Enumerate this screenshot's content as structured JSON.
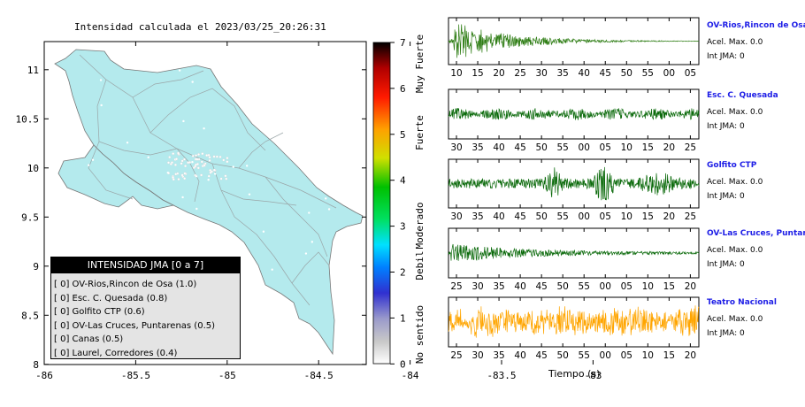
{
  "map": {
    "title": "Intensidad calculada el 2023/03/25_20:26:31",
    "lon_ticks": [
      "-86",
      "-85.5",
      "-85",
      "-84.5",
      "-84",
      "-83.5",
      "-83"
    ],
    "lat_ticks": [
      "11",
      "10.5",
      "10",
      "9.5",
      "9",
      "8.5",
      "8"
    ],
    "land_color": "#b4eaed"
  },
  "colorbar": {
    "ticks": [
      "7",
      "6",
      "5",
      "4",
      "3",
      "2",
      "1",
      "0"
    ],
    "labels": [
      "Muy Fuerte",
      "Fuerte",
      "Moderado",
      "Debil",
      "No sentido"
    ]
  },
  "legend": {
    "title": "INTENSIDAD JMA [0 a 7]",
    "entries": [
      {
        "level": "[ 0]",
        "station": "OV-Rios,Rincon de Osa (1.0)"
      },
      {
        "level": "[ 0]",
        "station": "Esc. C. Quesada (0.8)"
      },
      {
        "level": "[ 0]",
        "station": "Golfito CTP (0.6)"
      },
      {
        "level": "[ 0]",
        "station": "OV-Las Cruces, Puntarenas (0.5)"
      },
      {
        "level": "[ 0]",
        "station": "Canas (0.5)"
      },
      {
        "level": "[ 0]",
        "station": "Laurel, Corredores (0.4)"
      }
    ]
  },
  "stations": [
    {
      "name": "OV-Rios,Rincon de Osa",
      "accel": "Acel. Max. 0.0",
      "jma": "Int JMA: 0",
      "color": "#2e7d14",
      "xticks": [
        "10",
        "15",
        "20",
        "25",
        "30",
        "35",
        "40",
        "45",
        "50",
        "55",
        "00",
        "05"
      ]
    },
    {
      "name": "Esc. C. Quesada",
      "accel": "Acel. Max. 0.0",
      "jma": "Int JMA: 0",
      "color": "#0b6a0b",
      "xticks": [
        "30",
        "35",
        "40",
        "45",
        "50",
        "55",
        "00",
        "05",
        "10",
        "15",
        "20",
        "25"
      ]
    },
    {
      "name": "Golfito CTP",
      "accel": "Acel. Max. 0.0",
      "jma": "Int JMA: 0",
      "color": "#0b6a0b",
      "xticks": [
        "30",
        "35",
        "40",
        "45",
        "50",
        "55",
        "00",
        "05",
        "10",
        "15",
        "20",
        "25"
      ]
    },
    {
      "name": "OV-Las Cruces, Puntar",
      "accel": "Acel. Max. 0.0",
      "jma": "Int JMA: 0",
      "color": "#0b6a0b",
      "xticks": [
        "25",
        "30",
        "35",
        "40",
        "45",
        "50",
        "55",
        "00",
        "05",
        "10",
        "15",
        "20"
      ]
    },
    {
      "name": "Teatro Nacional",
      "accel": "Acel. Max. 0.0",
      "jma": "Int JMA: 0",
      "color": "#ffa500",
      "xticks": [
        "25",
        "30",
        "35",
        "40",
        "45",
        "50",
        "55",
        "00",
        "05",
        "10",
        "15",
        "20"
      ]
    }
  ],
  "xlabel": "Tiempo (s)",
  "chart_data": [
    {
      "type": "scatter",
      "title": "Intensidad calculada el 2023/03/25_20:26:31",
      "xlabel": "",
      "ylabel": "",
      "xlim": [
        -86,
        -82.5
      ],
      "ylim": [
        8,
        11.3
      ],
      "colorbar_range": [
        0,
        7
      ],
      "legend_placement": "bottom-left",
      "grid": false
    },
    {
      "type": "line",
      "title": "",
      "xlabel": "Tiempo (s)",
      "ylabel": "",
      "series": [
        {
          "name": "OV-Rios,Rincon de Osa"
        },
        {
          "name": "Esc. C. Quesada"
        },
        {
          "name": "Golfito CTP"
        },
        {
          "name": "OV-Las Cruces, Puntar"
        },
        {
          "name": "Teatro Nacional"
        }
      ],
      "grid": false
    }
  ]
}
